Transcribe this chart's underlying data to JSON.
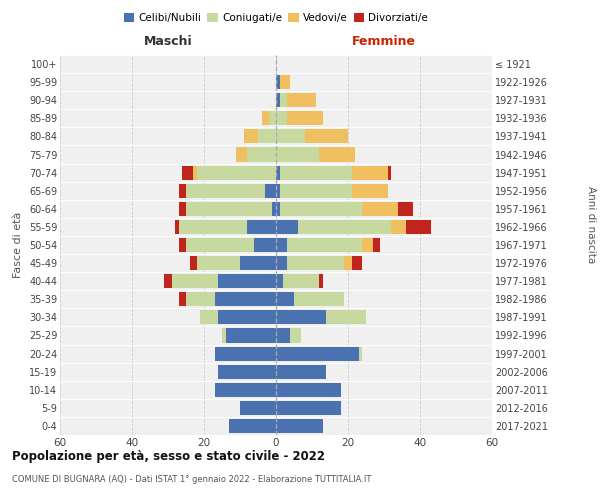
{
  "age_groups": [
    "0-4",
    "5-9",
    "10-14",
    "15-19",
    "20-24",
    "25-29",
    "30-34",
    "35-39",
    "40-44",
    "45-49",
    "50-54",
    "55-59",
    "60-64",
    "65-69",
    "70-74",
    "75-79",
    "80-84",
    "85-89",
    "90-94",
    "95-99",
    "100+"
  ],
  "birth_years": [
    "2017-2021",
    "2012-2016",
    "2007-2011",
    "2002-2006",
    "1997-2001",
    "1992-1996",
    "1987-1991",
    "1982-1986",
    "1977-1981",
    "1972-1976",
    "1967-1971",
    "1962-1966",
    "1957-1961",
    "1952-1956",
    "1947-1951",
    "1942-1946",
    "1937-1941",
    "1932-1936",
    "1927-1931",
    "1922-1926",
    "≤ 1921"
  ],
  "maschi": {
    "celibe": [
      13,
      10,
      17,
      16,
      17,
      14,
      16,
      17,
      16,
      10,
      6,
      8,
      1,
      3,
      0,
      0,
      0,
      0,
      0,
      0,
      0
    ],
    "coniugato": [
      0,
      0,
      0,
      0,
      0,
      1,
      5,
      8,
      13,
      12,
      19,
      19,
      24,
      22,
      22,
      8,
      5,
      2,
      0,
      0,
      0
    ],
    "vedovo": [
      0,
      0,
      0,
      0,
      0,
      0,
      0,
      0,
      0,
      0,
      0,
      0,
      0,
      0,
      1,
      3,
      4,
      2,
      0,
      0,
      0
    ],
    "divorziato": [
      0,
      0,
      0,
      0,
      0,
      0,
      0,
      2,
      2,
      2,
      2,
      1,
      2,
      2,
      3,
      0,
      0,
      0,
      0,
      0,
      0
    ]
  },
  "femmine": {
    "nubile": [
      13,
      18,
      18,
      14,
      23,
      4,
      14,
      5,
      2,
      3,
      3,
      6,
      1,
      1,
      1,
      0,
      0,
      0,
      1,
      1,
      0
    ],
    "coniugata": [
      0,
      0,
      0,
      0,
      1,
      3,
      11,
      14,
      10,
      16,
      21,
      26,
      23,
      20,
      20,
      12,
      8,
      3,
      2,
      0,
      0
    ],
    "vedova": [
      0,
      0,
      0,
      0,
      0,
      0,
      0,
      0,
      0,
      2,
      3,
      4,
      10,
      10,
      10,
      10,
      12,
      10,
      8,
      3,
      0
    ],
    "divorziata": [
      0,
      0,
      0,
      0,
      0,
      0,
      0,
      0,
      1,
      3,
      2,
      7,
      4,
      0,
      1,
      0,
      0,
      0,
      0,
      0,
      0
    ]
  },
  "colors": {
    "celibe": "#4a72b0",
    "coniugato": "#c8d9a0",
    "vedovo": "#f0c060",
    "divorziato": "#c0241c"
  },
  "legend_labels": [
    "Celibi/Nubili",
    "Coniugati/e",
    "Vedovi/e",
    "Divorziati/e"
  ],
  "title": "Popolazione per età, sesso e stato civile - 2022",
  "subtitle": "COMUNE DI BUGNARA (AQ) - Dati ISTAT 1° gennaio 2022 - Elaborazione TUTTITALIA.IT",
  "label_maschi": "Maschi",
  "label_femmine": "Femmine",
  "ylabel_left": "Fasce di età",
  "ylabel_right": "Anni di nascita",
  "xlim": 60,
  "bg_color": "#f0f0f0"
}
